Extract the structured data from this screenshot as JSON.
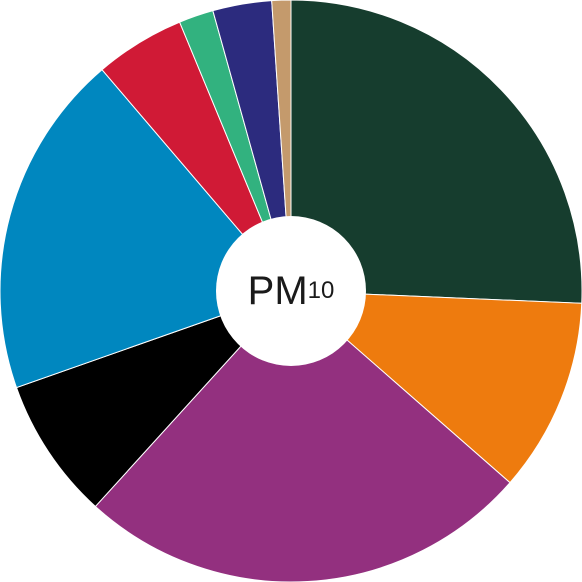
{
  "chart_data": {
    "type": "pie",
    "center_label": {
      "main": "PM",
      "sub": "10"
    },
    "slices": [
      {
        "value": 26.7,
        "color": "#163d2e"
      },
      {
        "value": 11.2,
        "color": "#ee7b0e"
      },
      {
        "value": 26.3,
        "color": "#93307f"
      },
      {
        "value": 8.2,
        "color": "#000000"
      },
      {
        "value": 19.9,
        "color": "#0087bf"
      },
      {
        "value": 5.2,
        "color": "#d01a36"
      },
      {
        "value": 2.0,
        "color": "#32b27f"
      },
      {
        "value": 3.4,
        "color": "#2c2b7e"
      },
      {
        "value": 1.1,
        "color": "#c49a6c"
      }
    ],
    "donut_hole_color": "#ffffff"
  }
}
